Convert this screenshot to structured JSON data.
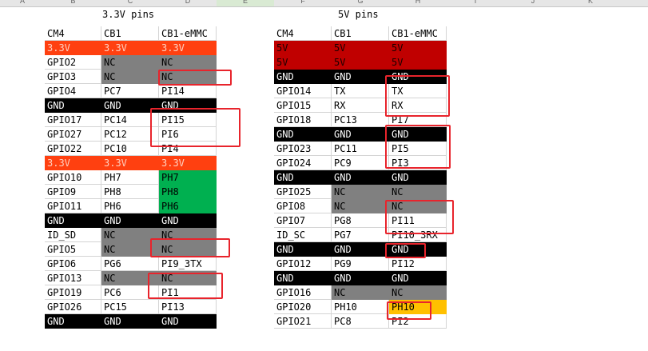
{
  "column_headers": [
    "A",
    "B",
    "C",
    "D",
    "E",
    "F",
    "G",
    "H",
    "I",
    "J",
    "K"
  ],
  "selected_column": "E",
  "titles": {
    "left": "3.3V pins",
    "right": "5V pins"
  },
  "colors": {
    "orange": "#ff4010",
    "gray": "#808080",
    "black": "#000000",
    "green": "#00b050",
    "red": "#c00000",
    "yellow": "#ffc000",
    "white": "#ffffff"
  },
  "left_table": {
    "rows": [
      [
        {
          "t": "CM4"
        },
        {
          "t": "CB1"
        },
        {
          "t": "CB1-eMMC"
        }
      ],
      [
        {
          "t": "3.3V",
          "c": "orange"
        },
        {
          "t": "3.3V",
          "c": "orange"
        },
        {
          "t": "3.3V",
          "c": "orange"
        }
      ],
      [
        {
          "t": "GPIO2"
        },
        {
          "t": "NC",
          "c": "gray"
        },
        {
          "t": "NC",
          "c": "gray"
        }
      ],
      [
        {
          "t": "GPIO3"
        },
        {
          "t": "NC",
          "c": "gray"
        },
        {
          "t": "NC",
          "c": "gray"
        }
      ],
      [
        {
          "t": "GPIO4"
        },
        {
          "t": "PC7"
        },
        {
          "t": "PI14"
        }
      ],
      [
        {
          "t": "GND",
          "c": "black"
        },
        {
          "t": "GND",
          "c": "black"
        },
        {
          "t": "GND",
          "c": "black"
        }
      ],
      [
        {
          "t": "GPIO17"
        },
        {
          "t": "PC14"
        },
        {
          "t": "PI15"
        }
      ],
      [
        {
          "t": "GPIO27"
        },
        {
          "t": "PC12"
        },
        {
          "t": "PI6"
        }
      ],
      [
        {
          "t": "GPIO22"
        },
        {
          "t": "PC10"
        },
        {
          "t": "PI4"
        }
      ],
      [
        {
          "t": "3.3V",
          "c": "orange"
        },
        {
          "t": "3.3V",
          "c": "orange"
        },
        {
          "t": "3.3V",
          "c": "orange"
        }
      ],
      [
        {
          "t": "GPIO10"
        },
        {
          "t": "PH7"
        },
        {
          "t": "PH7",
          "c": "green"
        }
      ],
      [
        {
          "t": "GPIO9"
        },
        {
          "t": "PH8"
        },
        {
          "t": "PH8",
          "c": "green"
        }
      ],
      [
        {
          "t": "GPIO11"
        },
        {
          "t": "PH6"
        },
        {
          "t": "PH6",
          "c": "green"
        }
      ],
      [
        {
          "t": "GND",
          "c": "black"
        },
        {
          "t": "GND",
          "c": "black"
        },
        {
          "t": "GND",
          "c": "black"
        }
      ],
      [
        {
          "t": "ID_SD"
        },
        {
          "t": "NC",
          "c": "gray"
        },
        {
          "t": "NC",
          "c": "gray"
        }
      ],
      [
        {
          "t": "GPIO5"
        },
        {
          "t": "NC",
          "c": "gray"
        },
        {
          "t": "NC",
          "c": "gray"
        }
      ],
      [
        {
          "t": "GPIO6"
        },
        {
          "t": "PG6"
        },
        {
          "t": "PI9_3TX"
        }
      ],
      [
        {
          "t": "GPIO13"
        },
        {
          "t": "NC",
          "c": "gray"
        },
        {
          "t": "NC",
          "c": "gray"
        }
      ],
      [
        {
          "t": "GPIO19"
        },
        {
          "t": "PC6"
        },
        {
          "t": "PI1"
        }
      ],
      [
        {
          "t": "GPIO26"
        },
        {
          "t": "PC15"
        },
        {
          "t": "PI13"
        }
      ],
      [
        {
          "t": "GND",
          "c": "black"
        },
        {
          "t": "GND",
          "c": "black"
        },
        {
          "t": "GND",
          "c": "black"
        }
      ]
    ]
  },
  "right_table": {
    "rows": [
      [
        {
          "t": "CM4"
        },
        {
          "t": "CB1"
        },
        {
          "t": "CB1-eMMC"
        }
      ],
      [
        {
          "t": "5V",
          "c": "red"
        },
        {
          "t": "5V",
          "c": "red"
        },
        {
          "t": "5V",
          "c": "red"
        }
      ],
      [
        {
          "t": "5V",
          "c": "red"
        },
        {
          "t": "5V",
          "c": "red"
        },
        {
          "t": "5V",
          "c": "red"
        }
      ],
      [
        {
          "t": "GND",
          "c": "black"
        },
        {
          "t": "GND",
          "c": "black"
        },
        {
          "t": "GND",
          "c": "black"
        }
      ],
      [
        {
          "t": "GPIO14"
        },
        {
          "t": "TX"
        },
        {
          "t": "TX"
        }
      ],
      [
        {
          "t": "GPIO15"
        },
        {
          "t": "RX"
        },
        {
          "t": "RX"
        }
      ],
      [
        {
          "t": "GPIO18"
        },
        {
          "t": "PC13"
        },
        {
          "t": "PI7"
        }
      ],
      [
        {
          "t": "GND",
          "c": "black"
        },
        {
          "t": "GND",
          "c": "black"
        },
        {
          "t": "GND",
          "c": "black"
        }
      ],
      [
        {
          "t": "GPIO23"
        },
        {
          "t": "PC11"
        },
        {
          "t": "PI5"
        }
      ],
      [
        {
          "t": "GPIO24"
        },
        {
          "t": "PC9"
        },
        {
          "t": "PI3"
        }
      ],
      [
        {
          "t": "GND",
          "c": "black"
        },
        {
          "t": "GND",
          "c": "black"
        },
        {
          "t": "GND",
          "c": "black"
        }
      ],
      [
        {
          "t": "GPIO25"
        },
        {
          "t": "NC",
          "c": "gray"
        },
        {
          "t": "NC",
          "c": "gray"
        }
      ],
      [
        {
          "t": "GPIO8"
        },
        {
          "t": "NC",
          "c": "gray"
        },
        {
          "t": "NC",
          "c": "gray"
        }
      ],
      [
        {
          "t": "GPIO7"
        },
        {
          "t": "PG8"
        },
        {
          "t": "PI11"
        }
      ],
      [
        {
          "t": "ID_SC"
        },
        {
          "t": "PG7"
        },
        {
          "t": "PI10_3RX"
        }
      ],
      [
        {
          "t": "GND",
          "c": "black"
        },
        {
          "t": "GND",
          "c": "black"
        },
        {
          "t": "GND",
          "c": "black"
        }
      ],
      [
        {
          "t": "GPIO12"
        },
        {
          "t": "PG9"
        },
        {
          "t": "PI12"
        }
      ],
      [
        {
          "t": "GND",
          "c": "black"
        },
        {
          "t": "GND",
          "c": "black"
        },
        {
          "t": "GND",
          "c": "black"
        }
      ],
      [
        {
          "t": "GPIO16"
        },
        {
          "t": "NC",
          "c": "gray"
        },
        {
          "t": "NC",
          "c": "gray"
        }
      ],
      [
        {
          "t": "GPIO20"
        },
        {
          "t": "PH10"
        },
        {
          "t": "PH10",
          "c": "yellow"
        }
      ],
      [
        {
          "t": "GPIO21"
        },
        {
          "t": "PC8"
        },
        {
          "t": "PI2"
        }
      ]
    ]
  }
}
